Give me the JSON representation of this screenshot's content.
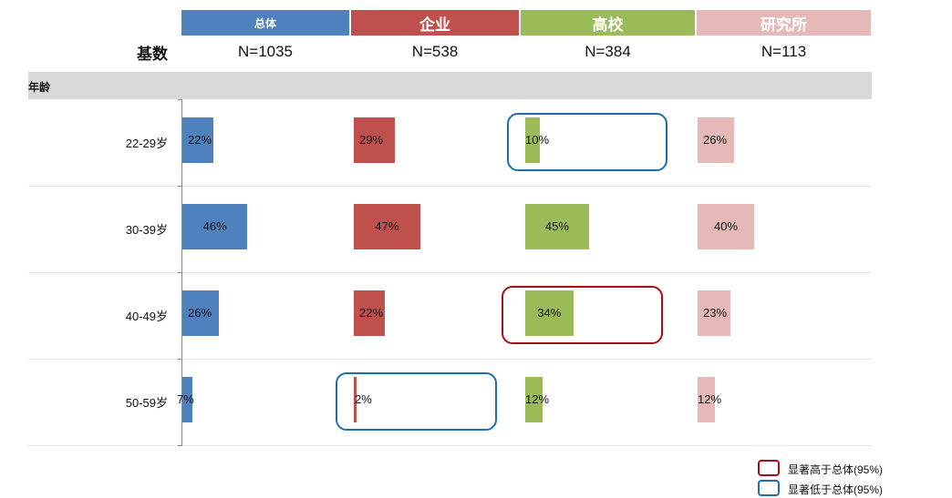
{
  "base_label": "基数",
  "section_label": "年龄",
  "colors": {
    "overall": "#4f81bd",
    "enterprise": "#c0504d",
    "university": "#9bbb59",
    "institute": "#e6b9b8",
    "highlight_high": "#a50f15",
    "highlight_low": "#1c6fab"
  },
  "legend": [
    {
      "label": "显著高于总体(95%)",
      "type": "high"
    },
    {
      "label": "显著低于总体(95%)",
      "type": "low"
    }
  ],
  "chart_data": {
    "type": "bar",
    "orientation": "horizontal",
    "categories": [
      "22-29岁",
      "30-39岁",
      "40-49岁",
      "50-59岁"
    ],
    "series": [
      {
        "name": "总体",
        "base": "N=1035",
        "values": [
          22,
          46,
          26,
          7
        ],
        "labels": [
          "22%",
          "46%",
          "26%",
          "7%"
        ],
        "color_key": "overall",
        "header_size": "small"
      },
      {
        "name": "企业",
        "base": "N=538",
        "values": [
          29,
          47,
          22,
          2
        ],
        "labels": [
          "29%",
          "47%",
          "22%",
          "2%"
        ],
        "color_key": "enterprise"
      },
      {
        "name": "高校",
        "base": "N=384",
        "values": [
          10,
          45,
          34,
          12
        ],
        "labels": [
          "10%",
          "45%",
          "34%",
          "12%"
        ],
        "color_key": "university"
      },
      {
        "name": "研究所",
        "base": "N=113",
        "values": [
          26,
          40,
          23,
          12
        ],
        "labels": [
          "26%",
          "40%",
          "23%",
          "12%"
        ],
        "color_key": "institute"
      }
    ],
    "highlights": [
      {
        "series": 2,
        "category": 0,
        "type": "low"
      },
      {
        "series": 2,
        "category": 2,
        "type": "high"
      },
      {
        "series": 1,
        "category": 3,
        "type": "low"
      }
    ],
    "unit": "%"
  }
}
